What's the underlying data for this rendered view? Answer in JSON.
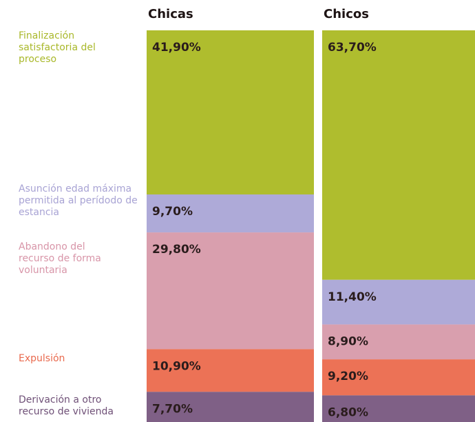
{
  "chart_data": {
    "type": "stacked_bar_100",
    "categories": [
      "Chicas",
      "Chicos"
    ],
    "ylim": [
      0,
      100
    ],
    "series": [
      {
        "name": "Finalización satisfactoria del proceso",
        "color": "#afbd2e",
        "values": [
          41.9,
          63.7
        ],
        "value_labels": [
          "41,90%",
          "63,70%"
        ]
      },
      {
        "name": "Asunción edad máxima permitida al perídodo de estancia",
        "color": "#aeaad8",
        "values": [
          9.7,
          11.4
        ],
        "value_labels": [
          "9,70%",
          "11,40%"
        ]
      },
      {
        "name": "Abandono del recurso de forma voluntaria",
        "color": "#d99fae",
        "values": [
          29.8,
          8.9
        ],
        "value_labels": [
          "29,80%",
          "8,90%"
        ]
      },
      {
        "name": "Expulsión",
        "color": "#ec7256",
        "values": [
          10.9,
          9.2
        ],
        "value_labels": [
          "10,90%",
          "9,20%"
        ]
      },
      {
        "name": "Derivación a otro recurso de vivienda",
        "color": "#7f6086",
        "values": [
          7.7,
          6.8
        ],
        "value_labels": [
          "7,70%",
          "6,80%"
        ]
      }
    ]
  }
}
